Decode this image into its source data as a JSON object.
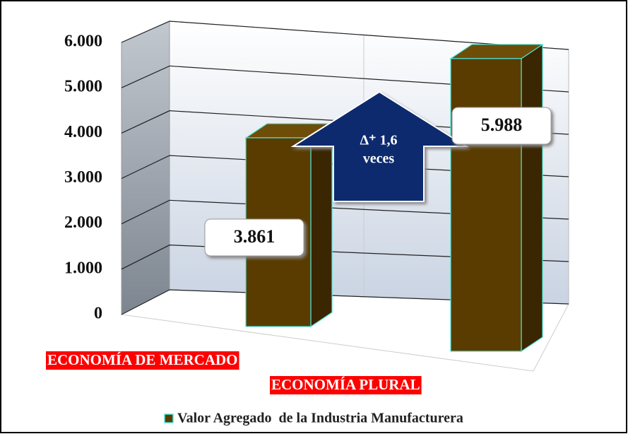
{
  "chart_data": {
    "type": "bar3d",
    "categories": [
      "ECONOMÍA DE MERCADO",
      "ECONOMÍA PLURAL"
    ],
    "series": [
      {
        "name": "Valor Agregado  de la Industria Manufacturera",
        "color": "#5a3c00",
        "values": [
          3861,
          5988
        ],
        "value_labels": [
          "3.861",
          "5.988"
        ]
      }
    ],
    "ylim": [
      0,
      6000
    ],
    "yticks": [
      0,
      {
        "value": 1000,
        "label": "1.000"
      },
      {
        "value": 2000,
        "label": "2.000"
      },
      {
        "value": 3000,
        "label": "3.000"
      },
      {
        "value": 4000,
        "label": "4.000"
      },
      {
        "value": 5000,
        "label": "5.000"
      },
      {
        "value": 6000,
        "label": "6.000"
      }
    ],
    "grid": true,
    "annotation": [
      "Δ⁺ 1,6",
      "veces"
    ]
  }
}
